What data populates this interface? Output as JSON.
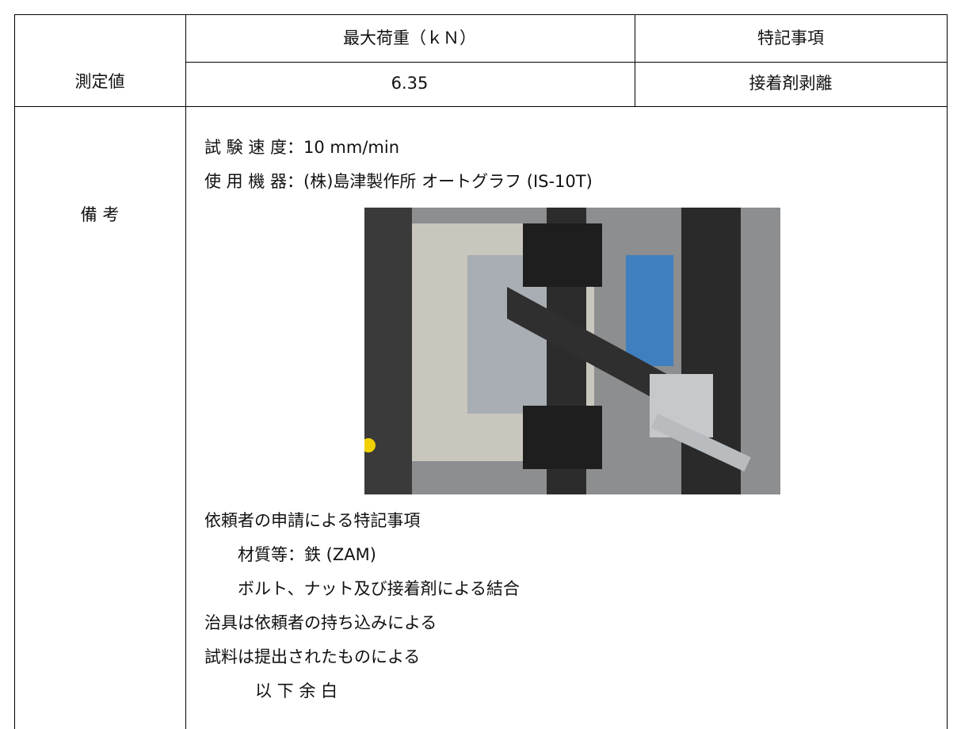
{
  "table": {
    "measured": {
      "label": "測定値",
      "columns": [
        "最大荷重（ｋＮ）",
        "特記事項"
      ],
      "values": [
        "6.35",
        "接着剤剥離"
      ]
    },
    "remarks": {
      "label": "備 考",
      "conditions": [
        "試 験 速 度：10 mm/min",
        "使 用 機 器：(株)島津製作所 オートグラフ (IS-10T)"
      ],
      "notes": [
        "依頼者の申請による特記事項",
        "材質等：鉄 (ZAM)",
        "ボルト、ナット及び接着剤による結合",
        "治具は依頼者の持ち込みによる",
        "試料は提出されたものによる",
        "以 下 余 白"
      ]
    }
  }
}
